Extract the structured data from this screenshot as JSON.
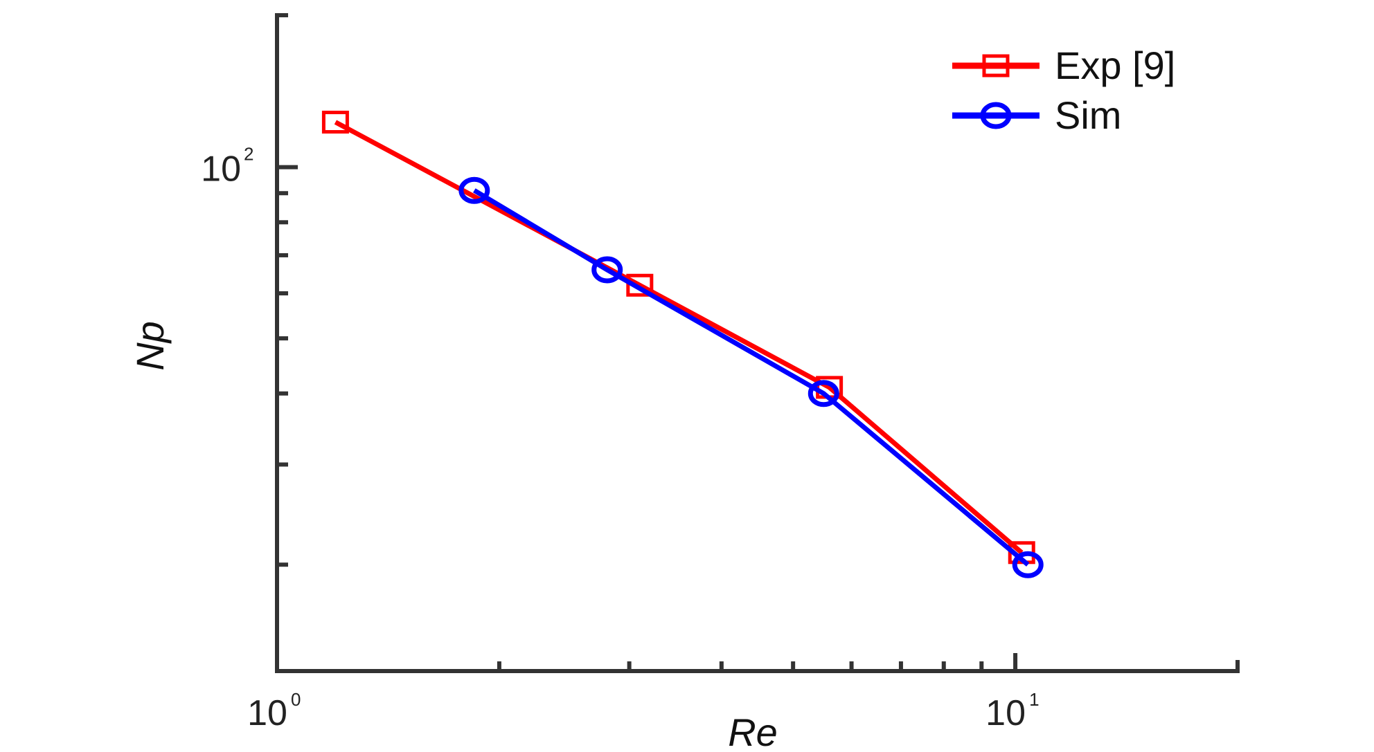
{
  "chart_data": {
    "type": "line",
    "title": "",
    "xlabel": "Re",
    "ylabel": "Np",
    "xscale": "log",
    "yscale": "log",
    "xlim": [
      1,
      20
    ],
    "ylim": [
      13,
      185
    ],
    "grid": false,
    "legend": "top-right",
    "x_ticks": [
      {
        "value": 1,
        "base": "10",
        "exp": "0"
      },
      {
        "value": 10,
        "base": "10",
        "exp": "1"
      }
    ],
    "y_ticks": [
      {
        "value": 100,
        "base": "10",
        "exp": "2"
      }
    ],
    "series": [
      {
        "name": "Exp [9]",
        "color": "#ff0000",
        "marker": "square",
        "x": [
          1.2,
          3.1,
          5.6,
          10.2
        ],
        "y": [
          120,
          62,
          41,
          21
        ]
      },
      {
        "name": "Sim",
        "color": "#0000ff",
        "marker": "circle",
        "x": [
          1.85,
          2.8,
          5.5,
          10.4
        ],
        "y": [
          91,
          66,
          40,
          20
        ]
      }
    ]
  }
}
